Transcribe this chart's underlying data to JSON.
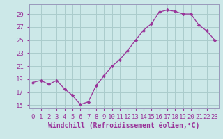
{
  "x": [
    0,
    1,
    2,
    3,
    4,
    5,
    6,
    7,
    8,
    9,
    10,
    11,
    12,
    13,
    14,
    15,
    16,
    17,
    18,
    19,
    20,
    21,
    22,
    23
  ],
  "y": [
    18.5,
    18.8,
    18.2,
    18.8,
    17.5,
    16.5,
    15.1,
    15.5,
    18.0,
    19.5,
    21.0,
    22.0,
    23.4,
    25.0,
    26.5,
    27.5,
    29.3,
    29.6,
    29.4,
    29.0,
    29.0,
    27.3,
    26.4,
    25.0
  ],
  "line_color": "#993399",
  "marker": "D",
  "marker_size": 2.2,
  "bg_color": "#cce8e8",
  "grid_color": "#aacccc",
  "xlabel": "Windchill (Refroidissement éolien,°C)",
  "ylim": [
    14.5,
    30.5
  ],
  "yticks": [
    15,
    17,
    19,
    21,
    23,
    25,
    27,
    29
  ],
  "xlim": [
    -0.5,
    23.5
  ],
  "xticks": [
    0,
    1,
    2,
    3,
    4,
    5,
    6,
    7,
    8,
    9,
    10,
    11,
    12,
    13,
    14,
    15,
    16,
    17,
    18,
    19,
    20,
    21,
    22,
    23
  ],
  "xlabel_fontsize": 7.0,
  "tick_fontsize": 6.5,
  "tick_color": "#993399",
  "spine_color": "#9999bb",
  "line_width": 0.9
}
